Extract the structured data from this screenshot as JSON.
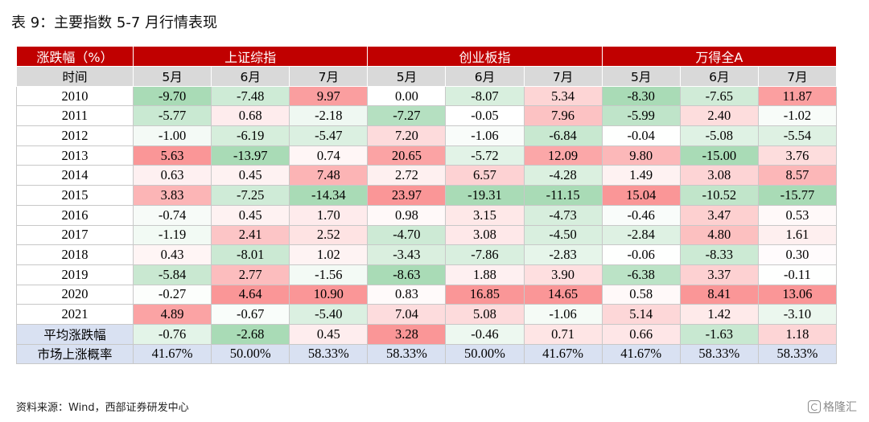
{
  "title": "表 9：主要指数 5-7 月行情表现",
  "source": "资料来源：Wind，西部证券研发中心",
  "watermark": "格隆汇",
  "table": {
    "corner_label": "涨跌幅（%）",
    "time_label": "时间",
    "groups": [
      "上证综指",
      "创业板指",
      "万得全A"
    ],
    "months": [
      "5月",
      "6月",
      "7月"
    ],
    "rows": [
      {
        "label": "2010",
        "values": [
          "-9.70",
          "-7.48",
          "9.97",
          "0.00",
          "-8.07",
          "5.34",
          "-8.30",
          "-7.65",
          "11.87"
        ]
      },
      {
        "label": "2011",
        "values": [
          "-5.77",
          "0.68",
          "-2.18",
          "-7.27",
          "-0.05",
          "7.96",
          "-5.99",
          "2.40",
          "-1.02"
        ]
      },
      {
        "label": "2012",
        "values": [
          "-1.00",
          "-6.19",
          "-5.47",
          "7.20",
          "-1.06",
          "-6.84",
          "-0.04",
          "-5.08",
          "-5.54"
        ]
      },
      {
        "label": "2013",
        "values": [
          "5.63",
          "-13.97",
          "0.74",
          "20.65",
          "-5.72",
          "12.09",
          "9.80",
          "-15.00",
          "3.76"
        ]
      },
      {
        "label": "2014",
        "values": [
          "0.63",
          "0.45",
          "7.48",
          "2.72",
          "6.57",
          "-4.28",
          "1.49",
          "3.08",
          "8.57"
        ]
      },
      {
        "label": "2015",
        "values": [
          "3.83",
          "-7.25",
          "-14.34",
          "23.97",
          "-19.31",
          "-11.15",
          "15.04",
          "-10.52",
          "-15.77"
        ]
      },
      {
        "label": "2016",
        "values": [
          "-0.74",
          "0.45",
          "1.70",
          "0.98",
          "3.15",
          "-4.73",
          "-0.46",
          "3.47",
          "0.53"
        ]
      },
      {
        "label": "2017",
        "values": [
          "-1.19",
          "2.41",
          "2.52",
          "-4.70",
          "3.08",
          "-4.50",
          "-2.84",
          "4.80",
          "1.61"
        ]
      },
      {
        "label": "2018",
        "values": [
          "0.43",
          "-8.01",
          "1.02",
          "-3.43",
          "-7.86",
          "-2.83",
          "-0.06",
          "-8.33",
          "0.30"
        ]
      },
      {
        "label": "2019",
        "values": [
          "-5.84",
          "2.77",
          "-1.56",
          "-8.63",
          "1.88",
          "3.90",
          "-6.38",
          "3.37",
          "-0.11"
        ]
      },
      {
        "label": "2020",
        "values": [
          "-0.27",
          "4.64",
          "10.90",
          "0.83",
          "16.85",
          "14.65",
          "0.58",
          "8.41",
          "13.06"
        ]
      },
      {
        "label": "2021",
        "values": [
          "4.89",
          "-0.67",
          "-5.40",
          "7.04",
          "5.08",
          "-1.06",
          "5.14",
          "1.42",
          "-3.10"
        ]
      }
    ],
    "average_row": {
      "label": "平均涨跌幅",
      "values": [
        "-0.76",
        "-2.68",
        "0.45",
        "3.28",
        "-0.46",
        "0.71",
        "0.66",
        "-1.63",
        "1.18"
      ]
    },
    "probability_row": {
      "label": "市场上涨概率",
      "values": [
        "41.67%",
        "50.00%",
        "58.33%",
        "58.33%",
        "50.00%",
        "41.67%",
        "41.67%",
        "58.33%",
        "58.33%"
      ]
    },
    "colors": {
      "header_red": "#c00000",
      "header_gray": "#d9d9d9",
      "positive": "#f8696b",
      "negative": "#63be7b",
      "neutral": "#ffffff",
      "summary_blue": "#d9e1f2"
    }
  }
}
